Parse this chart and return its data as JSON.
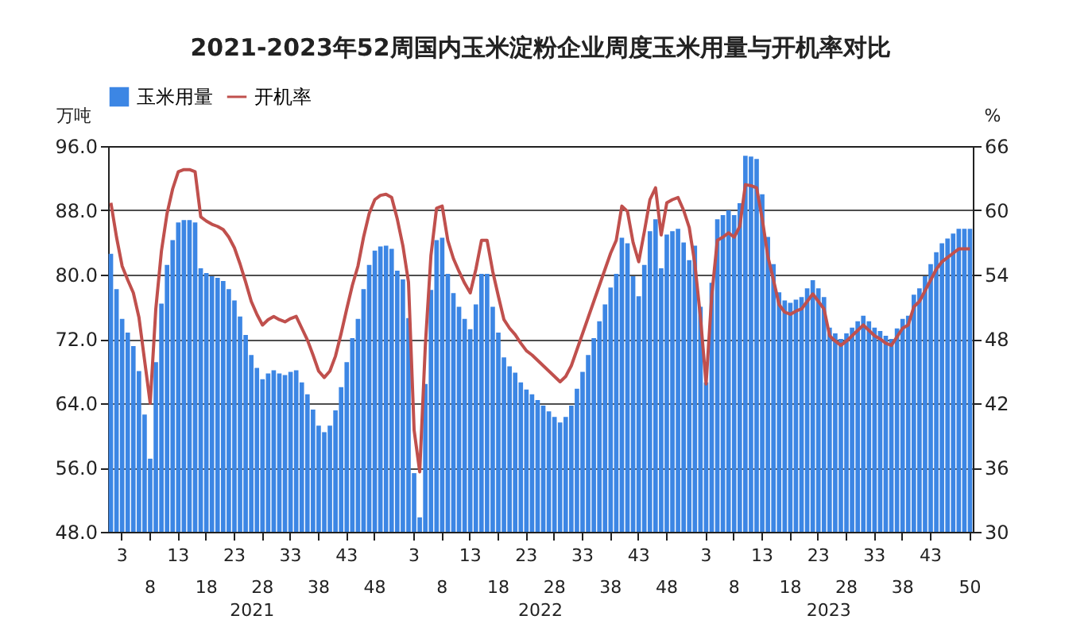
{
  "chart_data": {
    "type": "bar",
    "title": "2021-2023年52周国内玉米淀粉企业周度玉米用量与开机率对比",
    "ylabel": "万吨",
    "y2label": "%",
    "categories": [
      null,
      null,
      "3",
      null,
      null,
      null,
      null,
      "8",
      null,
      null,
      null,
      null,
      "13",
      null,
      null,
      null,
      null,
      "18",
      null,
      null,
      null,
      null,
      "23",
      null,
      null,
      null,
      null,
      "28",
      null,
      null,
      null,
      null,
      "33",
      null,
      null,
      null,
      null,
      "38",
      null,
      null,
      null,
      null,
      "43",
      null,
      null,
      null,
      null,
      "48",
      null,
      null,
      null,
      null,
      null,
      null,
      "3",
      null,
      null,
      null,
      null,
      "8",
      null,
      null,
      null,
      null,
      "13",
      null,
      null,
      null,
      null,
      "18",
      null,
      null,
      null,
      null,
      "23",
      null,
      null,
      null,
      null,
      "28",
      null,
      null,
      null,
      null,
      "33",
      null,
      null,
      null,
      null,
      "38",
      null,
      null,
      null,
      null,
      "43",
      null,
      null,
      null,
      null,
      "48",
      null,
      null,
      null,
      null,
      null,
      null,
      "3",
      null,
      null,
      null,
      null,
      "8",
      null,
      null,
      null,
      null,
      "13",
      null,
      null,
      null,
      null,
      "18",
      null,
      null,
      null,
      null,
      "23",
      null,
      null,
      null,
      null,
      "28",
      null,
      null,
      null,
      null,
      "33",
      null,
      null,
      null,
      null,
      "38",
      null,
      null,
      null,
      null,
      "43",
      null,
      null,
      null,
      null,
      null,
      null,
      "50"
    ],
    "annotations": [
      "2021",
      "2022",
      "2023"
    ],
    "ylim": [
      48,
      96
    ],
    "yticks": [
      {
        "value": 48,
        "label": "48.0"
      },
      {
        "value": 56,
        "label": "56.0"
      },
      {
        "value": 64,
        "label": "64.0"
      },
      {
        "value": 72,
        "label": "72.0"
      },
      {
        "value": 80,
        "label": "80.0"
      },
      {
        "value": 88,
        "label": "88.0"
      },
      {
        "value": 96,
        "label": "96.0"
      }
    ],
    "y2lim": [
      30,
      66
    ],
    "y2ticks": [
      30,
      36,
      42,
      48,
      54,
      60,
      66
    ],
    "grid": "y",
    "legend": "top",
    "series": [
      {
        "name": "玉米用量",
        "color": "#3c86e4",
        "values": [
          82.6,
          78.2,
          74.5,
          72.8,
          71.1,
          68.0,
          62.6,
          57.1,
          69.1,
          76.4,
          81.2,
          84.3,
          86.5,
          86.8,
          86.8,
          86.5,
          80.8,
          80.2,
          79.8,
          79.6,
          79.2,
          78.2,
          76.8,
          74.8,
          72.5,
          70.0,
          68.4,
          67.0,
          67.7,
          68.1,
          67.7,
          67.5,
          67.9,
          68.1,
          66.6,
          65.1,
          63.2,
          61.2,
          60.4,
          61.2,
          63.1,
          66.0,
          69.1,
          72.1,
          74.5,
          78.2,
          81.2,
          83.0,
          83.5,
          83.6,
          83.2,
          80.5,
          79.4,
          74.6,
          55.3,
          49.8,
          66.4,
          78.1,
          84.3,
          84.6,
          80.1,
          77.7,
          76.0,
          74.5,
          73.2,
          76.3,
          80.1,
          80.1,
          76.0,
          72.8,
          69.7,
          68.6,
          67.8,
          66.6,
          65.7,
          65.1,
          64.4,
          63.7,
          63.0,
          62.3,
          61.6,
          62.3,
          63.7,
          65.8,
          67.9,
          70.0,
          72.1,
          74.2,
          76.3,
          78.4,
          80.1,
          84.6,
          83.9,
          79.8,
          77.3,
          81.2,
          85.4,
          86.9,
          80.8,
          85.0,
          85.4,
          85.7,
          84.0,
          81.8,
          83.6,
          76.0,
          66.6,
          79.0,
          86.9,
          87.4,
          88.0,
          87.4,
          88.9,
          94.8,
          94.7,
          94.4,
          90.0,
          84.7,
          81.3,
          77.8,
          76.8,
          76.5,
          76.9,
          77.2,
          78.3,
          79.3,
          78.3,
          77.2,
          73.4,
          72.7,
          72.0,
          72.7,
          73.4,
          74.2,
          74.9,
          74.2,
          73.4,
          73.0,
          72.4,
          72.0,
          73.3,
          74.5,
          74.9,
          77.5,
          78.3,
          79.8,
          81.3,
          82.8,
          83.9,
          84.5,
          85.1,
          85.7,
          85.7,
          85.7
        ]
      },
      {
        "name": "开机率",
        "type": "line",
        "axis": "y2",
        "color": "#c0504d",
        "values": [
          60.7,
          57.5,
          54.8,
          53.5,
          52.3,
          50.0,
          46.0,
          42.0,
          50.8,
          56.2,
          59.7,
          62.0,
          63.6,
          63.8,
          63.8,
          63.6,
          59.4,
          59.0,
          58.7,
          58.5,
          58.2,
          57.5,
          56.5,
          55.0,
          53.3,
          51.5,
          50.3,
          49.3,
          49.8,
          50.1,
          49.8,
          49.6,
          49.9,
          50.1,
          49.0,
          47.9,
          46.5,
          45.0,
          44.4,
          45.0,
          46.4,
          48.5,
          50.8,
          53.0,
          54.8,
          57.5,
          59.7,
          61.0,
          61.4,
          61.5,
          61.2,
          59.2,
          56.7,
          53.3,
          39.5,
          35.6,
          47.4,
          55.8,
          60.2,
          60.4,
          57.2,
          55.5,
          54.3,
          53.2,
          52.3,
          54.5,
          57.2,
          57.2,
          54.3,
          52.0,
          49.8,
          49.0,
          48.4,
          47.6,
          46.9,
          46.5,
          46.0,
          45.5,
          45.0,
          44.5,
          44.0,
          44.5,
          45.5,
          47.0,
          48.5,
          50.0,
          51.5,
          53.0,
          54.5,
          56.0,
          57.2,
          60.4,
          59.9,
          57.0,
          55.2,
          58.0,
          61.0,
          62.1,
          57.7,
          60.7,
          61.0,
          61.2,
          60.0,
          58.4,
          55.0,
          50.0,
          43.8,
          52.0,
          57.2,
          57.5,
          57.9,
          57.5,
          58.5,
          62.4,
          62.3,
          62.1,
          59.2,
          55.7,
          53.5,
          51.2,
          50.5,
          50.3,
          50.6,
          50.8,
          51.5,
          52.2,
          51.5,
          50.8,
          48.3,
          47.8,
          47.4,
          47.8,
          48.3,
          48.8,
          49.3,
          48.8,
          48.3,
          48.0,
          47.6,
          47.4,
          48.2,
          49.0,
          49.3,
          51.0,
          51.5,
          52.5,
          53.5,
          54.5,
          55.2,
          55.6,
          56.0,
          56.4,
          56.4,
          56.4
        ]
      }
    ]
  }
}
